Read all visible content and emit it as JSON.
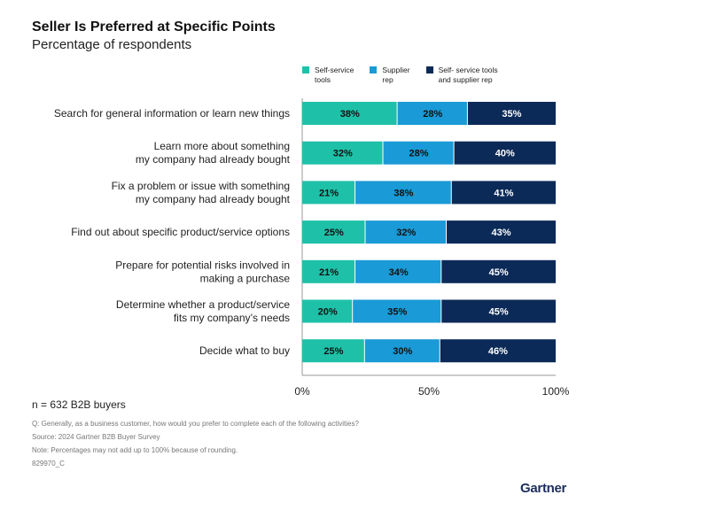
{
  "header": {
    "title": "Seller Is Preferred at Specific Points",
    "subtitle": "Percentage of respondents"
  },
  "chart_data": {
    "type": "bar",
    "orientation": "horizontal",
    "stacked": true,
    "title": "Seller Is Preferred at Specific Points",
    "subtitle": "Percentage of respondents",
    "categories": [
      "Search for general information or learn new things",
      "Learn more about something my company had already bought",
      "Fix a problem or issue with something my company had already bought",
      "Find out about specific product/service options",
      "Prepare for potential risks involved in making a purchase",
      "Determine whether a product/service fits my company's needs",
      "Decide what to buy"
    ],
    "category_lines": [
      [
        "Search for general information or learn new things"
      ],
      [
        "Learn more about something",
        "my company had already bought"
      ],
      [
        "Fix a problem or issue with something",
        "my company had already bought"
      ],
      [
        "Find out about specific product/service options"
      ],
      [
        "Prepare for potential risks involved in",
        "making a purchase"
      ],
      [
        "Determine whether a product/service",
        "fits my company’s needs"
      ],
      [
        "Decide what to buy"
      ]
    ],
    "series": [
      {
        "name": "Self-service tools",
        "legend": "Self-service\ntools",
        "color": "#1ec1a8",
        "label_color": "#111111",
        "values": [
          38,
          32,
          21,
          25,
          21,
          20,
          25
        ]
      },
      {
        "name": "Supplier rep",
        "legend": "Supplier\nrep",
        "color": "#1a9ad6",
        "label_color": "#111111",
        "values": [
          28,
          28,
          38,
          32,
          34,
          35,
          30
        ]
      },
      {
        "name": "Self- service tools and supplier rep",
        "legend": "Self- service tools\nand supplier rep",
        "color": "#0c2a58",
        "label_color": "#ffffff",
        "values": [
          35,
          40,
          41,
          43,
          45,
          45,
          46
        ]
      }
    ],
    "value_suffix": "%",
    "xlim": [
      0,
      100
    ],
    "xticks": [
      0,
      50,
      100
    ],
    "xtick_labels": [
      "0%",
      "50%",
      "100%"
    ],
    "xlabel": "",
    "ylabel": "",
    "grid": false,
    "legend_position": "top"
  },
  "footer": {
    "sample": "n = 632 B2B buyers",
    "question": "Q: Generally, as a business customer, how would you prefer to complete each of the following activities?",
    "source": "Source: 2024 Gartner B2B Buyer Survey",
    "note": "Note: Percentages may not add up to 100% because of rounding.",
    "code": "829970_C",
    "logo": "Gartner"
  }
}
